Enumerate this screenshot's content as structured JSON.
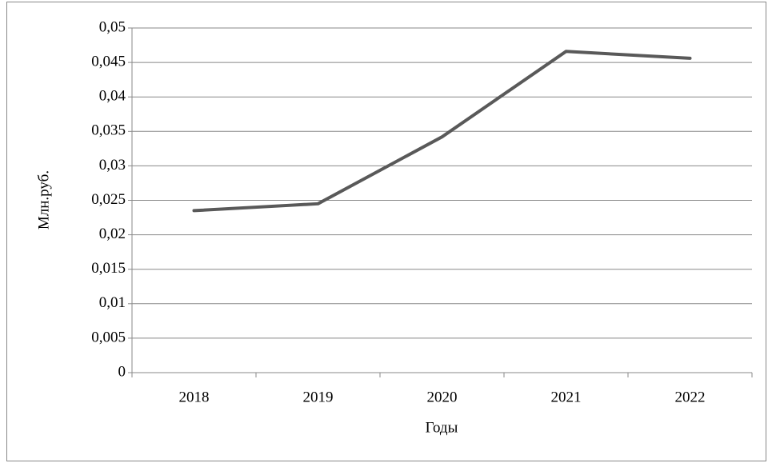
{
  "chart_data": {
    "type": "line",
    "xlabel": "Годы",
    "ylabel": "Млн.руб.",
    "categories": [
      "2018",
      "2019",
      "2020",
      "2021",
      "2022"
    ],
    "series": [
      {
        "color": "#595959",
        "values": [
          0.0235,
          0.0245,
          0.0342,
          0.0466,
          0.0456
        ]
      }
    ],
    "ylim": [
      0,
      0.05
    ],
    "yticks": [
      0,
      {
        "value": 0.005,
        "label": "0,005"
      },
      {
        "value": 0.01,
        "label": "0,01"
      },
      {
        "value": 0.015,
        "label": "0,015"
      },
      {
        "value": 0.02,
        "label": "0,02"
      },
      {
        "value": 0.025,
        "label": "0,025"
      },
      {
        "value": 0.03,
        "label": "0,03"
      },
      {
        "value": 0.035,
        "label": "0,035"
      },
      {
        "value": 0.04,
        "label": "0,04"
      },
      {
        "value": 0.045,
        "label": "0,045"
      },
      {
        "value": 0.05,
        "label": "0,05"
      }
    ],
    "grid": true
  }
}
